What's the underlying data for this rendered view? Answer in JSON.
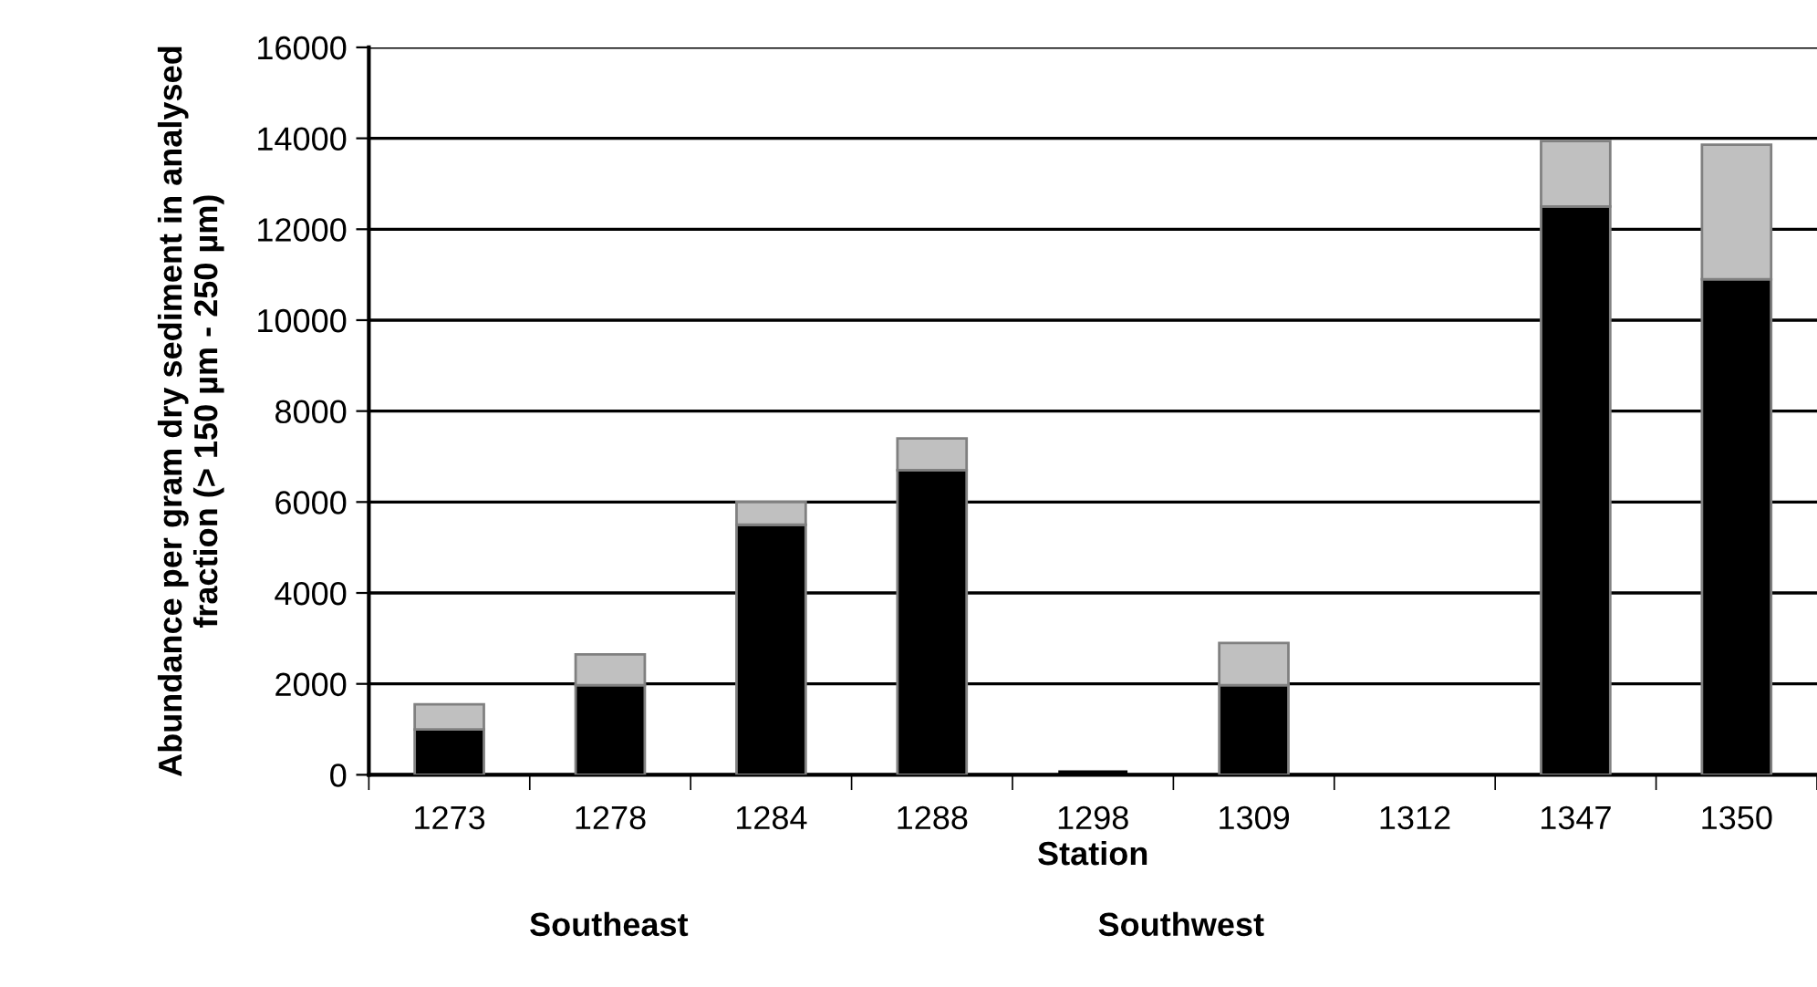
{
  "chart_data": {
    "type": "bar",
    "stacked": true,
    "xlabel": "Station",
    "ylabel": "Abundance per gram dry sediment in analysed fraction (> 150 µm - 250 µm)",
    "categories": [
      "1273",
      "1278",
      "1284",
      "1288",
      "1298",
      "1309",
      "1312",
      "1347",
      "1350"
    ],
    "series": [
      {
        "color": "#000000",
        "values": [
          1000,
          1970,
          5500,
          6700,
          100,
          1970,
          0,
          12500,
          10900
        ]
      },
      {
        "color": "#c0c0c0",
        "values": [
          550,
          680,
          500,
          700,
          0,
          930,
          0,
          1440,
          2960
        ]
      }
    ],
    "ylim": [
      0,
      16000
    ],
    "yticks": [
      0,
      2000,
      4000,
      6000,
      8000,
      10000,
      12000,
      14000,
      16000
    ],
    "grid": "y",
    "annotations": [
      "Southeast",
      "Southwest"
    ]
  }
}
